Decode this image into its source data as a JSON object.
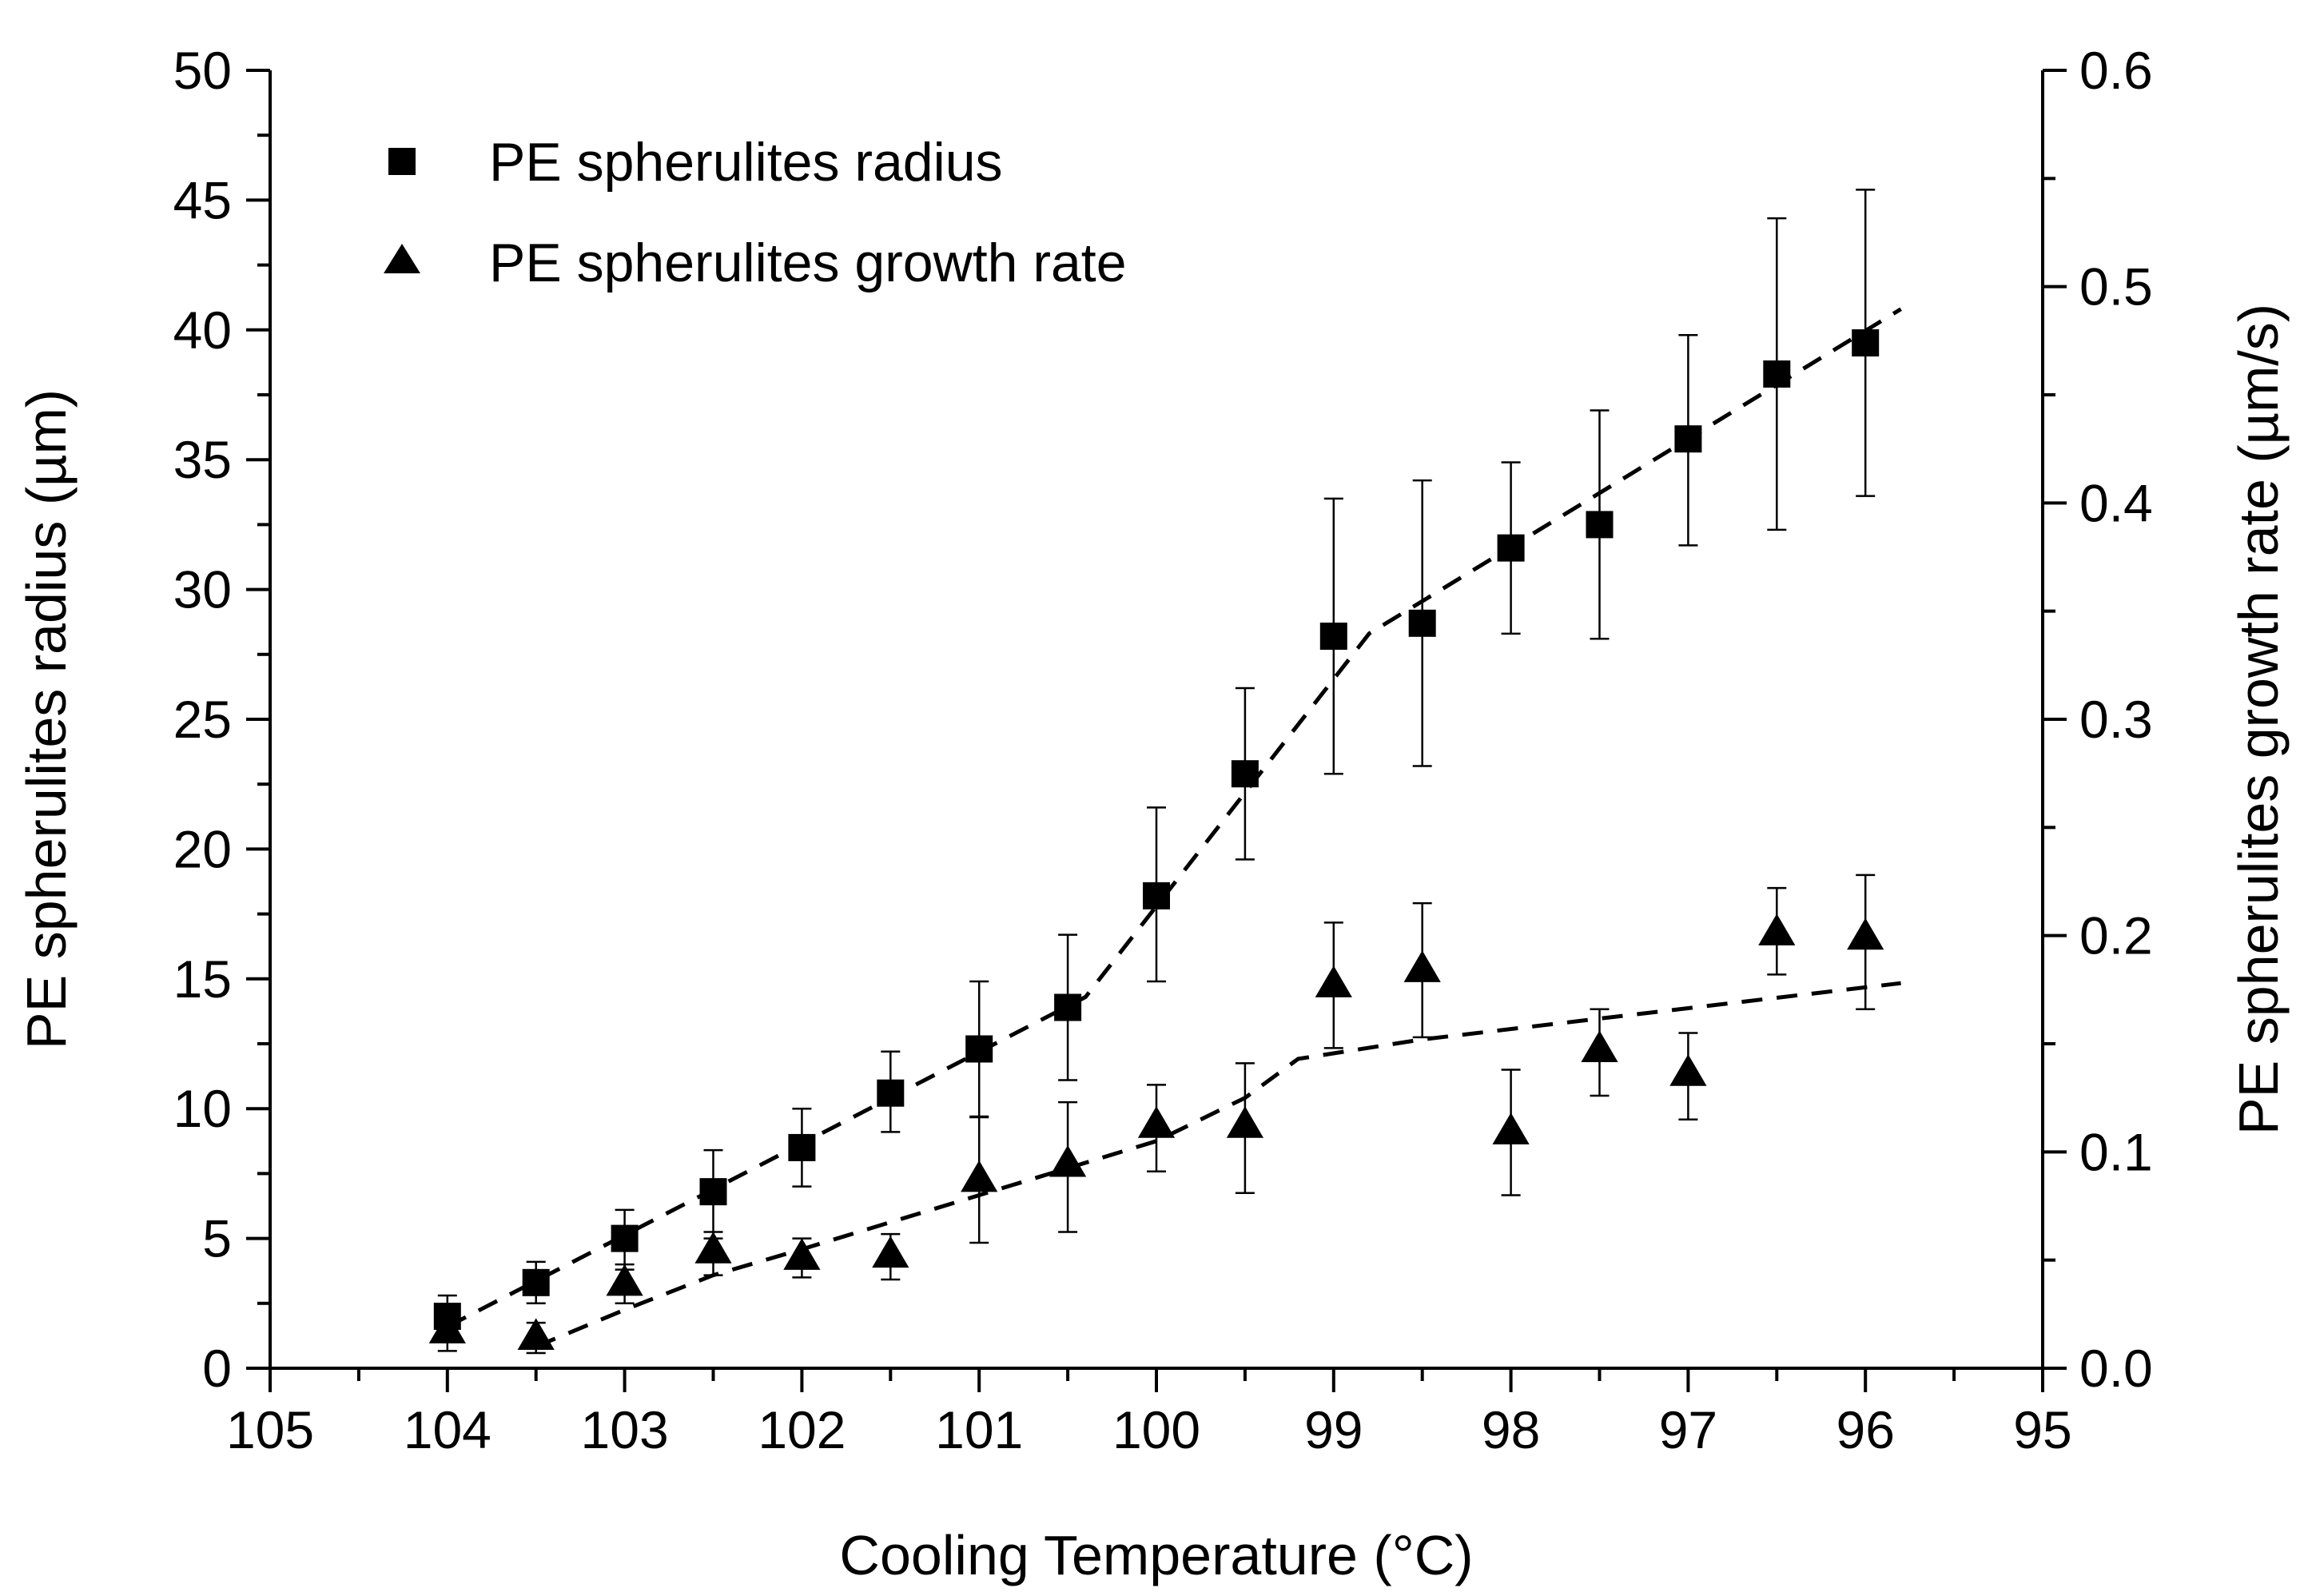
{
  "chart_data": {
    "type": "scatter",
    "x": [
      104,
      103.5,
      103,
      102.5,
      102,
      101.5,
      101,
      100.5,
      100,
      99.5,
      99,
      98.5,
      98,
      97.5,
      97,
      96.5,
      96
    ],
    "xlabel": "Cooling Temperature (°C)",
    "xlim": [
      105,
      95
    ],
    "x_ticks": [
      "105",
      "104",
      "103",
      "102",
      "101",
      "100",
      "99",
      "98",
      "97",
      "96",
      "95"
    ],
    "ylabel": "PE spherulites radius (µm)",
    "ylim": [
      0,
      50
    ],
    "y_ticks": [
      "0",
      "5",
      "10",
      "15",
      "20",
      "25",
      "30",
      "35",
      "40",
      "45",
      "50"
    ],
    "y2label": "PE spherulites growth rate (µm/s)",
    "y2lim": [
      0,
      0.6
    ],
    "y2_ticks": [
      "0.0",
      "0.1",
      "0.2",
      "0.3",
      "0.4",
      "0.5",
      "0.6"
    ],
    "legend_position": "top-left",
    "series": [
      {
        "name": "PE spherulites radius",
        "marker": "square",
        "axis": "left",
        "values": [
          2.0,
          3.3,
          5.0,
          6.8,
          8.5,
          10.6,
          12.3,
          13.9,
          18.2,
          22.9,
          28.2,
          28.7,
          31.6,
          32.5,
          35.8,
          38.3,
          39.5
        ],
        "error_low": [
          0.8,
          0.8,
          1.2,
          1.8,
          1.5,
          1.5,
          2.6,
          2.8,
          3.3,
          3.3,
          5.3,
          5.5,
          3.3,
          4.4,
          4.1,
          6.0,
          5.9
        ],
        "error_high": [
          0.8,
          0.8,
          1.1,
          1.6,
          1.5,
          1.6,
          2.6,
          2.8,
          3.4,
          3.3,
          5.3,
          5.5,
          3.3,
          4.4,
          4.0,
          6.0,
          5.9
        ],
        "trend": {
          "x": [
            104,
            100.4,
            98.8,
            95.8
          ],
          "y": [
            1.6,
            14.3,
            28.3,
            40.8
          ]
        }
      },
      {
        "name": "PE spherulites growth rate",
        "marker": "triangle",
        "axis": "right",
        "values": [
          0.018,
          0.015,
          0.04,
          0.055,
          0.052,
          0.053,
          0.088,
          0.095,
          0.113,
          0.113,
          0.178,
          0.185,
          0.11,
          0.148,
          0.137,
          0.202,
          0.2
        ],
        "error_low": [
          0.01,
          0.008,
          0.01,
          0.012,
          0.01,
          0.012,
          0.03,
          0.032,
          0.022,
          0.032,
          0.03,
          0.032,
          0.03,
          0.022,
          0.022,
          0.02,
          0.034
        ],
        "error_high": [
          0.006,
          0.006,
          0.008,
          0.008,
          0.008,
          0.009,
          0.028,
          0.028,
          0.018,
          0.028,
          0.028,
          0.03,
          0.028,
          0.018,
          0.018,
          0.02,
          0.028
        ],
        "trend": {
          "x": [
            103.5,
            103,
            102.5,
            102,
            101,
            100,
            99.5,
            99.2,
            98.5,
            95.8
          ],
          "y": [
            0.01,
            0.027,
            0.043,
            0.055,
            0.08,
            0.105,
            0.125,
            0.143,
            0.152,
            0.178
          ]
        }
      }
    ]
  }
}
